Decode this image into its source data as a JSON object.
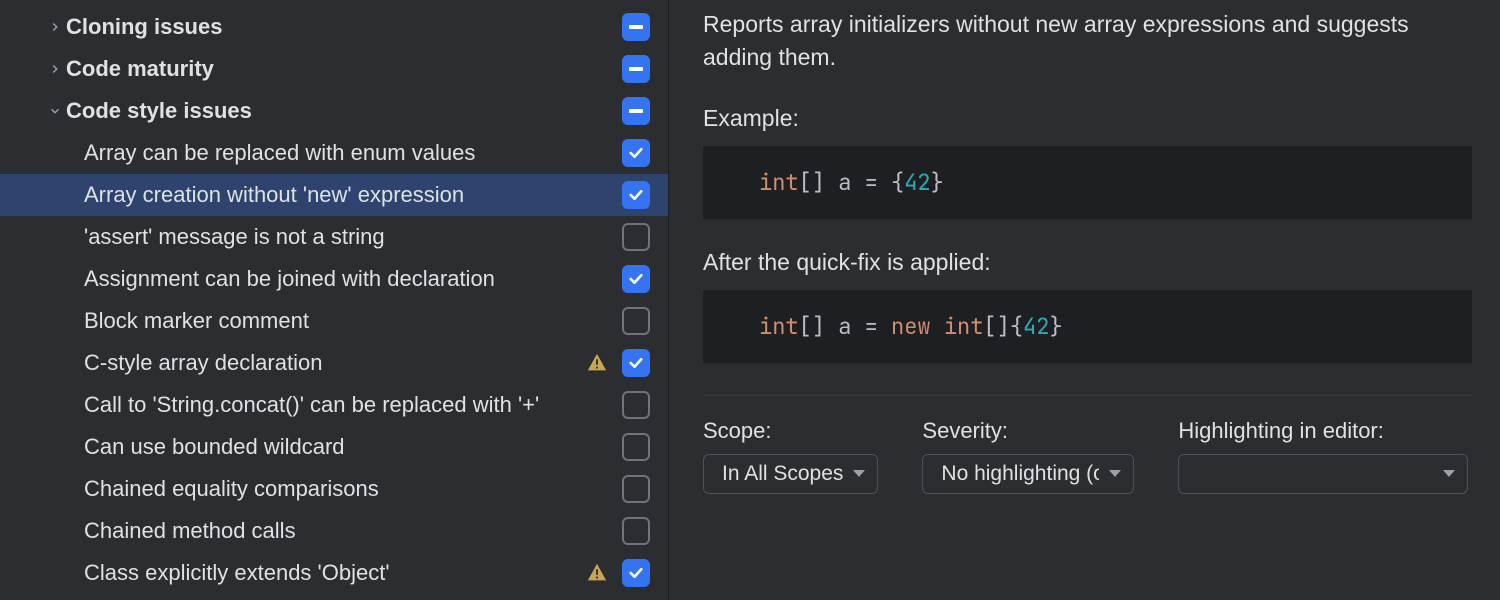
{
  "tree": {
    "categories": [
      {
        "label": "Cloning issues",
        "expanded": false,
        "state": "mixed"
      },
      {
        "label": "Code maturity",
        "expanded": false,
        "state": "mixed"
      },
      {
        "label": "Code style issues",
        "expanded": true,
        "state": "mixed"
      }
    ],
    "items": [
      {
        "label": "Array can be replaced with enum values",
        "state": "checked",
        "warn": false,
        "selected": false
      },
      {
        "label": "Array creation without 'new' expression",
        "state": "checked",
        "warn": false,
        "selected": true
      },
      {
        "label": "'assert' message is not a string",
        "state": "unchecked",
        "warn": false,
        "selected": false
      },
      {
        "label": "Assignment can be joined with declaration",
        "state": "checked",
        "warn": false,
        "selected": false
      },
      {
        "label": "Block marker comment",
        "state": "unchecked",
        "warn": false,
        "selected": false
      },
      {
        "label": "C-style array declaration",
        "state": "checked",
        "warn": true,
        "selected": false
      },
      {
        "label": "Call to 'String.concat()' can be replaced with '+'",
        "state": "unchecked",
        "warn": false,
        "selected": false
      },
      {
        "label": "Can use bounded wildcard",
        "state": "unchecked",
        "warn": false,
        "selected": false
      },
      {
        "label": "Chained equality comparisons",
        "state": "unchecked",
        "warn": false,
        "selected": false
      },
      {
        "label": "Chained method calls",
        "state": "unchecked",
        "warn": false,
        "selected": false
      },
      {
        "label": "Class explicitly extends 'Object'",
        "state": "checked",
        "warn": true,
        "selected": false
      }
    ]
  },
  "details": {
    "description": "Reports array initializers without new array expressions and suggests adding them.",
    "example_label": "Example:",
    "example_code": {
      "tokens": [
        {
          "t": "int",
          "c": "kw"
        },
        {
          "t": "[] a = {",
          "c": ""
        },
        {
          "t": "42",
          "c": "num"
        },
        {
          "t": "}",
          "c": ""
        }
      ]
    },
    "after_label": "After the quick-fix is applied:",
    "after_code": {
      "tokens": [
        {
          "t": "int",
          "c": "kw"
        },
        {
          "t": "[] a = ",
          "c": ""
        },
        {
          "t": "new int",
          "c": "kw"
        },
        {
          "t": "[]{",
          "c": ""
        },
        {
          "t": "42",
          "c": "num"
        },
        {
          "t": "}",
          "c": ""
        }
      ]
    },
    "scope_label": "Scope:",
    "scope_value": "In All Scopes",
    "severity_label": "Severity:",
    "severity_value": "No highlighting (only fix)",
    "highlighting_label": "Highlighting in editor:",
    "highlighting_value": ""
  },
  "colors": {
    "bg": "#2b2d30",
    "panel_bg": "#1e1f22",
    "text": "#dfe1e5",
    "accent": "#3574f0",
    "selection": "#2e436e",
    "border": "#4e5157",
    "warn": "#c9a552",
    "code_kw": "#cf8e6d",
    "code_num": "#2aacb8"
  }
}
